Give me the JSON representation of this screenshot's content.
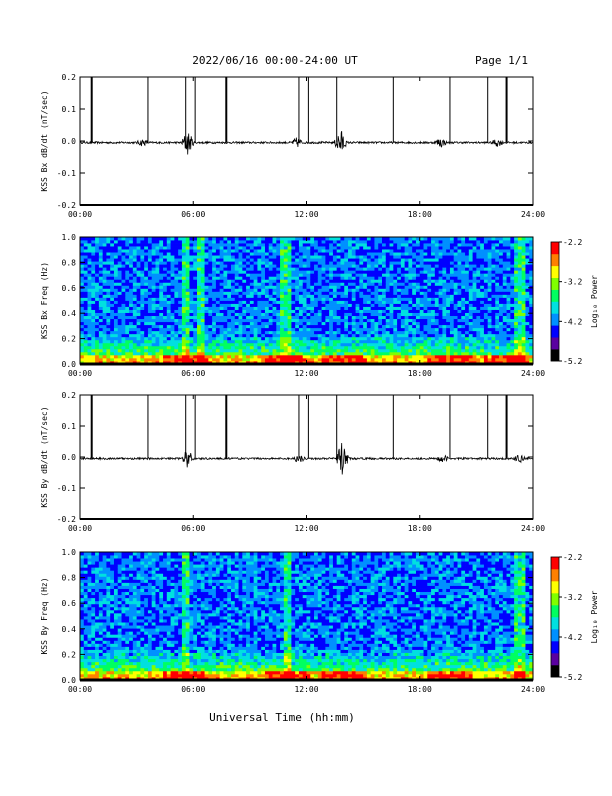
{
  "header": {
    "title": "2022/06/16  00:00-24:00 UT",
    "page": "Page 1/1"
  },
  "footer": {
    "xlabel": "Universal Time (hh:mm)"
  },
  "colorbar": {
    "label": "Log₁₀ Power",
    "ticks": [
      "-2.2",
      "-3.2",
      "-4.2",
      "-5.2"
    ],
    "colors": [
      "#000000",
      "#5a00a0",
      "#0000ff",
      "#0090ff",
      "#00e0e0",
      "#00ff60",
      "#80ff00",
      "#ffff00",
      "#ff8000",
      "#ff0000"
    ]
  },
  "chart_data": [
    {
      "type": "line",
      "ylabel": "KSS Bx dB/dt (nT/sec)",
      "ylim": [
        -0.2,
        0.2
      ],
      "yticks": [
        "0.2",
        "0.1",
        "0.0",
        "-0.1",
        "-0.2"
      ],
      "xticks": [
        "00:00",
        "06:00",
        "12:00",
        "18:00",
        "24:00"
      ],
      "xrange_hours": [
        0,
        24
      ],
      "spikes_hours": [
        0.62,
        3.6,
        5.6,
        6.1,
        7.75,
        11.6,
        12.1,
        13.6,
        16.6,
        19.6,
        21.6,
        22.6
      ],
      "bursts": [
        {
          "hour": 3.3,
          "amplitude": 0.01
        },
        {
          "hour": 5.7,
          "amplitude": 0.04
        },
        {
          "hour": 11.5,
          "amplitude": 0.015
        },
        {
          "hour": 13.8,
          "amplitude": 0.045
        },
        {
          "hour": 19.1,
          "amplitude": 0.015
        },
        {
          "hour": 22.1,
          "amplitude": 0.012
        }
      ]
    },
    {
      "type": "heatmap",
      "ylabel": "KSS Bx Freq (Hz)",
      "ylim": [
        0.0,
        1.0
      ],
      "yticks": [
        "1.0",
        "0.8",
        "0.6",
        "0.4",
        "0.2",
        "0.0"
      ],
      "xticks": [
        "00:00",
        "06:00",
        "12:00",
        "18:00",
        "24:00"
      ],
      "zlim": [
        -5.2,
        -2.2
      ],
      "broadband_hours": [
        5.6,
        6.4,
        10.9,
        23.3
      ],
      "low_freq_enhanced_hours": [
        5.6,
        11.0,
        14.0,
        19.6,
        22.6
      ]
    },
    {
      "type": "line",
      "ylabel": "KSS By dB/dt (nT/sec)",
      "ylim": [
        -0.2,
        0.2
      ],
      "yticks": [
        "0.2",
        "0.1",
        "0.0",
        "-0.1",
        "-0.2"
      ],
      "xticks": [
        "00:00",
        "06:00",
        "12:00",
        "18:00",
        "24:00"
      ],
      "xrange_hours": [
        0,
        24
      ],
      "spikes_hours": [
        0.62,
        3.6,
        5.6,
        6.1,
        7.75,
        11.6,
        12.1,
        13.6,
        16.6,
        19.6,
        21.6,
        22.6
      ],
      "bursts": [
        {
          "hour": 5.7,
          "amplitude": 0.03
        },
        {
          "hour": 11.6,
          "amplitude": 0.012
        },
        {
          "hour": 13.9,
          "amplitude": 0.06
        },
        {
          "hour": 19.2,
          "amplitude": 0.012
        },
        {
          "hour": 23.3,
          "amplitude": 0.012
        }
      ]
    },
    {
      "type": "heatmap",
      "ylabel": "KSS By Freq (Hz)",
      "ylim": [
        0.0,
        1.0
      ],
      "yticks": [
        "1.0",
        "0.8",
        "0.6",
        "0.4",
        "0.2",
        "0.0"
      ],
      "xticks": [
        "00:00",
        "06:00",
        "12:00",
        "18:00",
        "24:00"
      ],
      "zlim": [
        -5.2,
        -2.2
      ],
      "broadband_hours": [
        5.6,
        11.0,
        23.3
      ],
      "low_freq_enhanced_hours": [
        5.6,
        11.0,
        14.0,
        19.6
      ]
    }
  ]
}
